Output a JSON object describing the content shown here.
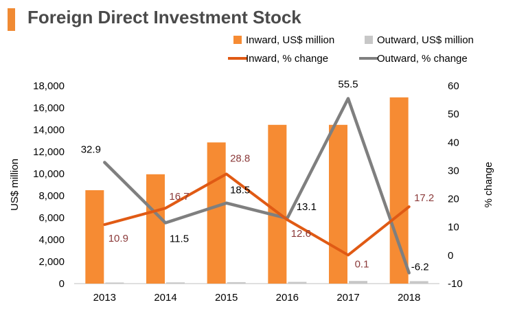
{
  "header": {
    "title": "Foreign Direct Investment Stock"
  },
  "colors": {
    "accent": "#f08a33",
    "inward_bar": "#f68b33",
    "outward_bar": "#c7c7c7",
    "inward_line": "#e05a14",
    "outward_line": "#7f7f7f",
    "inward_label": "#8b3a3a",
    "outward_label": "#000000"
  },
  "chart_data": {
    "type": "bar",
    "title": "Foreign Direct Investment Stock",
    "categories": [
      "2013",
      "2014",
      "2015",
      "2016",
      "2017",
      "2018"
    ],
    "series": [
      {
        "name": "Inward, US$ million",
        "kind": "bar",
        "axis": "left",
        "values": [
          8500,
          9950,
          12850,
          14450,
          14450,
          16950
        ]
      },
      {
        "name": "Outward, US$ million",
        "kind": "bar",
        "axis": "left",
        "values": [
          100,
          110,
          130,
          155,
          240,
          225
        ]
      },
      {
        "name": "Inward, % change",
        "kind": "line",
        "axis": "right",
        "values": [
          10.9,
          16.7,
          28.8,
          12.6,
          0.1,
          17.2
        ],
        "labels": [
          "10.9",
          "16.7",
          "28.8",
          "12.6",
          "0.1",
          "17.2"
        ]
      },
      {
        "name": "Outward, % change",
        "kind": "line",
        "axis": "right",
        "values": [
          32.9,
          11.5,
          18.5,
          13.1,
          55.5,
          -6.2
        ],
        "labels": [
          "32.9",
          "11.5",
          "18.5",
          "13.1",
          "55.5",
          "-6.2"
        ]
      }
    ],
    "y_left": {
      "label": "US$ million",
      "lim": [
        0,
        18000
      ],
      "ticks": [
        "0",
        "2,000",
        "4,000",
        "6,000",
        "8,000",
        "10,000",
        "12,000",
        "14,000",
        "16,000",
        "18,000"
      ]
    },
    "y_right": {
      "label": "% change",
      "lim": [
        -10,
        60
      ],
      "ticks": [
        "-10",
        "0",
        "10",
        "20",
        "30",
        "40",
        "50",
        "60"
      ]
    },
    "legend": {
      "position": "top-right",
      "entries": [
        "Inward, US$ million",
        "Outward, US$ million",
        "Inward, % change",
        "Outward, % change"
      ]
    },
    "grid": false
  }
}
